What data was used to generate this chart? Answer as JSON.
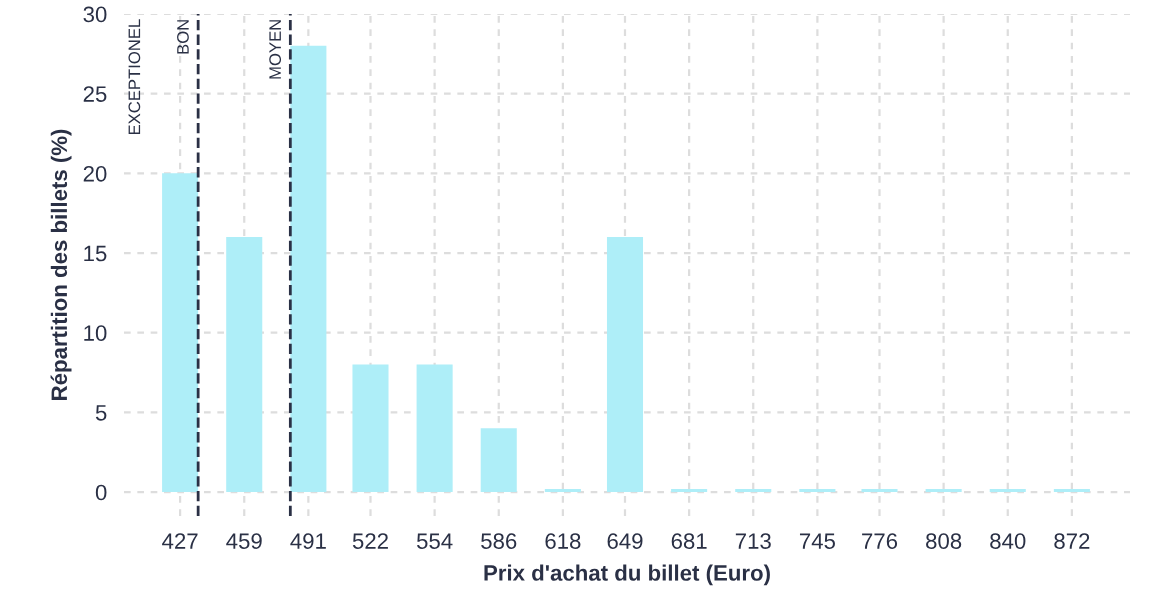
{
  "chart_data": {
    "type": "bar",
    "xlabel": "Prix d'achat du billet (Euro)",
    "ylabel": "Répartition des billets (%)",
    "x": [
      427,
      459,
      491,
      522,
      554,
      586,
      618,
      649,
      681,
      713,
      745,
      776,
      808,
      840,
      872
    ],
    "values": [
      20,
      16,
      28,
      8,
      8,
      4,
      0.2,
      16,
      0.2,
      0.2,
      0.2,
      0.2,
      0.2,
      0.2,
      0.2
    ],
    "color": "#aeeef8",
    "xlim": [
      399,
      901
    ],
    "xticks": [
      427,
      459,
      491,
      522,
      554,
      586,
      618,
      649,
      681,
      713,
      745,
      776,
      808,
      840,
      872
    ],
    "ylim": [
      -1.5,
      30
    ],
    "yticks": [
      0,
      5,
      10,
      15,
      20,
      25,
      30
    ],
    "grid": true,
    "ref_lines": [
      {
        "axis": "x",
        "value": 436,
        "label": "BON",
        "color": "#2a3045",
        "line_style": "dashed"
      },
      {
        "axis": "x",
        "value": 482,
        "label": "MOYEN",
        "color": "#2a3045",
        "line_style": "dashed"
      }
    ],
    "annotations": [
      "EXCEPTIONEL"
    ]
  }
}
